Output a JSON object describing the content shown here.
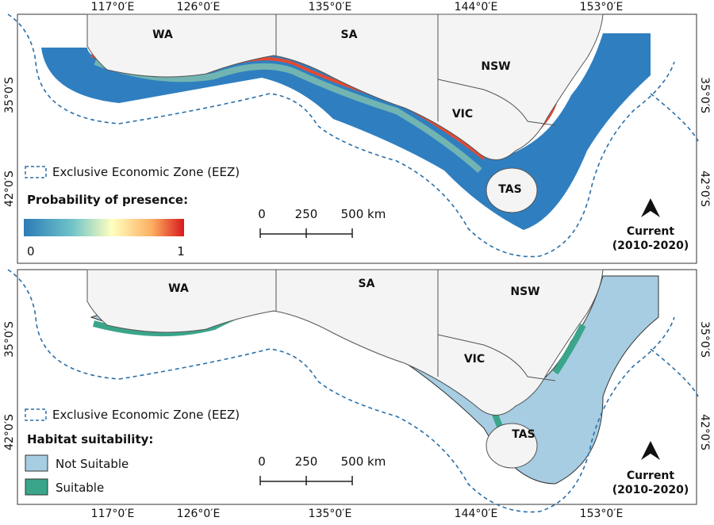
{
  "graticule": {
    "longitudes": [
      "117°0′E",
      "126°0′E",
      "135°0′E",
      "144°0′E",
      "153°0′E"
    ],
    "latitudes": [
      "35°0′S",
      "42°0′S"
    ]
  },
  "states": [
    "WA",
    "SA",
    "NSW",
    "VIC",
    "TAS"
  ],
  "eez_label": "Exclusive Economic Zone (EEZ)",
  "scale": {
    "labels": [
      "0",
      "250",
      "500 km"
    ]
  },
  "period": [
    "Current",
    "(2010-2020)"
  ],
  "panels": [
    {
      "legend_title": "Probability of presence:",
      "range": [
        "0",
        "1"
      ]
    },
    {
      "legend_title": "Habitat suitability:",
      "classes": [
        "Not Suitable",
        "Suitable"
      ]
    }
  ]
}
